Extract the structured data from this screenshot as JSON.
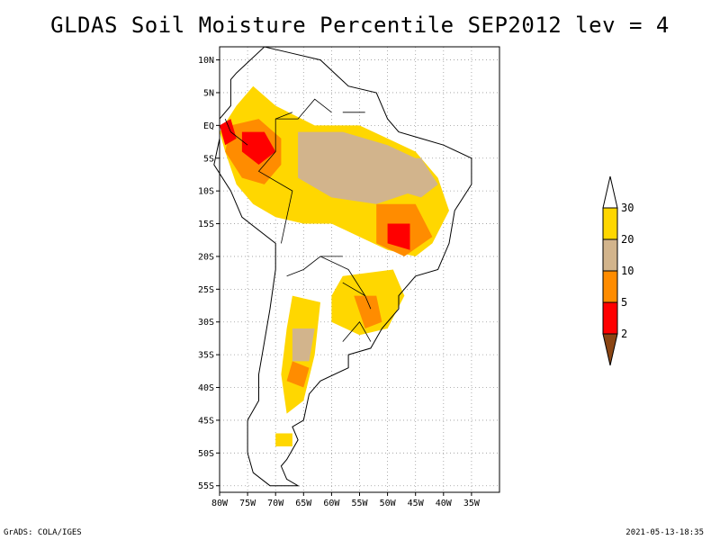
{
  "title": "GLDAS Soil Moisture Percentile SEP2012 lev = 4",
  "footer": {
    "left": "GrADS: COLA/IGES",
    "right": "2021-05-13-18:35"
  },
  "map": {
    "lon_range": [
      -80,
      -30
    ],
    "lat_range": [
      -56,
      12
    ],
    "lon_ticks": [
      {
        "value": -80,
        "label": "80W"
      },
      {
        "value": -75,
        "label": "75W"
      },
      {
        "value": -70,
        "label": "70W"
      },
      {
        "value": -65,
        "label": "65W"
      },
      {
        "value": -60,
        "label": "60W"
      },
      {
        "value": -55,
        "label": "55W"
      },
      {
        "value": -50,
        "label": "50W"
      },
      {
        "value": -45,
        "label": "45W"
      },
      {
        "value": -40,
        "label": "40W"
      },
      {
        "value": -35,
        "label": "35W"
      }
    ],
    "lat_ticks": [
      {
        "value": 10,
        "label": "10N"
      },
      {
        "value": 5,
        "label": "5N"
      },
      {
        "value": 0,
        "label": "EQ"
      },
      {
        "value": -5,
        "label": "5S"
      },
      {
        "value": -10,
        "label": "10S"
      },
      {
        "value": -15,
        "label": "15S"
      },
      {
        "value": -20,
        "label": "20S"
      },
      {
        "value": -25,
        "label": "25S"
      },
      {
        "value": -30,
        "label": "30S"
      },
      {
        "value": -35,
        "label": "35S"
      },
      {
        "value": -40,
        "label": "40S"
      },
      {
        "value": -45,
        "label": "45S"
      },
      {
        "value": -50,
        "label": "50S"
      },
      {
        "value": -55,
        "label": "55S"
      }
    ],
    "grid": true,
    "colorbar": {
      "placement": "right",
      "bins": [
        {
          "range": "<2",
          "color": "#8b4513"
        },
        {
          "range": "2-5",
          "color": "#ff0000"
        },
        {
          "range": "5-10",
          "color": "#ff8c00"
        },
        {
          "range": "10-20",
          "color": "#d2b48c"
        },
        {
          "range": "20-30",
          "color": "#ffd700"
        },
        {
          "range": ">30",
          "color": "#ffffff"
        }
      ],
      "labels": [
        "2",
        "5",
        "10",
        "20",
        "30"
      ]
    },
    "regions": [
      {
        "category": "20-30",
        "color": "#ffd700",
        "coords": [
          [
            -77,
            3
          ],
          [
            -74,
            6
          ],
          [
            -70,
            3
          ],
          [
            -63,
            0
          ],
          [
            -55,
            0
          ],
          [
            -50,
            -2
          ],
          [
            -45,
            -4
          ],
          [
            -41,
            -8
          ],
          [
            -39,
            -13
          ],
          [
            -42,
            -18
          ],
          [
            -45,
            -20
          ],
          [
            -50,
            -19
          ],
          [
            -55,
            -17
          ],
          [
            -60,
            -15
          ],
          [
            -65,
            -15
          ],
          [
            -70,
            -14
          ],
          [
            -74,
            -12
          ],
          [
            -77,
            -9
          ],
          [
            -79,
            -4
          ],
          [
            -80,
            -1
          ]
        ]
      },
      {
        "category": "10-20",
        "color": "#d2b48c",
        "coords": [
          [
            -66,
            -1
          ],
          [
            -58,
            -1
          ],
          [
            -50,
            -3
          ],
          [
            -45,
            -5
          ],
          [
            -45,
            -10
          ],
          [
            -52,
            -12
          ],
          [
            -60,
            -11
          ],
          [
            -66,
            -8
          ]
        ]
      },
      {
        "category": "10-20",
        "color": "#d2b48c",
        "coords": [
          [
            -49,
            -5
          ],
          [
            -44,
            -5
          ],
          [
            -41,
            -9
          ],
          [
            -44,
            -11
          ],
          [
            -48,
            -10
          ]
        ]
      },
      {
        "category": "5-10",
        "color": "#ff8c00",
        "coords": [
          [
            -78,
            0
          ],
          [
            -73,
            1
          ],
          [
            -69,
            -2
          ],
          [
            -69,
            -6
          ],
          [
            -72,
            -9
          ],
          [
            -76,
            -8
          ],
          [
            -79,
            -4
          ]
        ]
      },
      {
        "category": "5-10",
        "color": "#ff8c00",
        "coords": [
          [
            -52,
            -12
          ],
          [
            -45,
            -12
          ],
          [
            -42,
            -17
          ],
          [
            -47,
            -20
          ],
          [
            -52,
            -18
          ]
        ]
      },
      {
        "category": "2-5",
        "color": "#ff0000",
        "coords": [
          [
            -76,
            -1
          ],
          [
            -72,
            -1
          ],
          [
            -70,
            -4
          ],
          [
            -73,
            -6
          ],
          [
            -76,
            -4
          ]
        ]
      },
      {
        "category": "2-5",
        "color": "#ff0000",
        "coords": [
          [
            -80,
            0
          ],
          [
            -78,
            1
          ],
          [
            -77,
            -2
          ],
          [
            -79,
            -3
          ]
        ]
      },
      {
        "category": "2-5",
        "color": "#ff0000",
        "coords": [
          [
            -50,
            -15
          ],
          [
            -46,
            -15
          ],
          [
            -46,
            -19
          ],
          [
            -50,
            -18
          ]
        ]
      },
      {
        "category": "20-30",
        "color": "#ffd700",
        "coords": [
          [
            -58,
            -23
          ],
          [
            -49,
            -22
          ],
          [
            -47,
            -26
          ],
          [
            -50,
            -31
          ],
          [
            -55,
            -32
          ],
          [
            -60,
            -30
          ],
          [
            -60,
            -26
          ]
        ]
      },
      {
        "category": "5-10",
        "color": "#ff8c00",
        "coords": [
          [
            -56,
            -26
          ],
          [
            -52,
            -26
          ],
          [
            -51,
            -30
          ],
          [
            -54,
            -31
          ]
        ]
      },
      {
        "category": "20-30",
        "color": "#ffd700",
        "coords": [
          [
            -67,
            -26
          ],
          [
            -62,
            -27
          ],
          [
            -63,
            -35
          ],
          [
            -65,
            -42
          ],
          [
            -68,
            -44
          ],
          [
            -69,
            -38
          ],
          [
            -68,
            -31
          ]
        ]
      },
      {
        "category": "10-20",
        "color": "#d2b48c",
        "coords": [
          [
            -67,
            -31
          ],
          [
            -63,
            -31
          ],
          [
            -64,
            -36
          ],
          [
            -67,
            -36
          ]
        ]
      },
      {
        "category": "20-30",
        "color": "#ffd700",
        "coords": [
          [
            -70,
            -47
          ],
          [
            -67,
            -47
          ],
          [
            -67,
            -49
          ],
          [
            -70,
            -49
          ]
        ]
      },
      {
        "category": "5-10",
        "color": "#ff8c00",
        "coords": [
          [
            -67,
            -36
          ],
          [
            -64,
            -37
          ],
          [
            -65,
            -40
          ],
          [
            -68,
            -39
          ]
        ]
      }
    ],
    "coastline": [
      [
        -77,
        8
      ],
      [
        -72,
        12
      ],
      [
        -67,
        11
      ],
      [
        -62,
        10
      ],
      [
        -57,
        6
      ],
      [
        -52,
        5
      ],
      [
        -50,
        1
      ],
      [
        -48,
        -1
      ],
      [
        -44,
        -2
      ],
      [
        -40,
        -3
      ],
      [
        -35,
        -5
      ],
      [
        -35,
        -9
      ],
      [
        -38,
        -13
      ],
      [
        -39,
        -18
      ],
      [
        -41,
        -22
      ],
      [
        -45,
        -23
      ],
      [
        -48,
        -26
      ],
      [
        -48,
        -28
      ],
      [
        -51,
        -31
      ],
      [
        -53,
        -34
      ],
      [
        -57,
        -35
      ],
      [
        -57,
        -37
      ],
      [
        -62,
        -39
      ],
      [
        -64,
        -41
      ],
      [
        -65,
        -45
      ],
      [
        -67,
        -46
      ],
      [
        -66,
        -48
      ],
      [
        -68,
        -51
      ],
      [
        -69,
        -52
      ],
      [
        -68,
        -54
      ],
      [
        -66,
        -55
      ],
      [
        -68,
        -55
      ],
      [
        -71,
        -55
      ],
      [
        -74,
        -53
      ],
      [
        -75,
        -50
      ],
      [
        -75,
        -45
      ],
      [
        -73,
        -42
      ],
      [
        -73,
        -38
      ],
      [
        -72,
        -33
      ],
      [
        -71,
        -28
      ],
      [
        -70,
        -22
      ],
      [
        -70,
        -18
      ],
      [
        -76,
        -14
      ],
      [
        -78,
        -10
      ],
      [
        -81,
        -6
      ],
      [
        -80,
        -2
      ],
      [
        -80,
        1
      ],
      [
        -78,
        3
      ],
      [
        -78,
        7
      ]
    ],
    "borders": [
      [
        [
          -69,
          -18
        ],
        [
          -67,
          -10
        ],
        [
          -73,
          -7
        ],
        [
          -70,
          -4
        ],
        [
          -70,
          1
        ],
        [
          -67,
          2
        ]
      ],
      [
        [
          -58,
          -20
        ],
        [
          -62,
          -20
        ],
        [
          -65,
          -22
        ],
        [
          -68,
          -23
        ]
      ],
      [
        [
          -54,
          -26
        ],
        [
          -57,
          -22
        ],
        [
          -62,
          -20
        ]
      ],
      [
        [
          -58,
          -33
        ],
        [
          -55,
          -30
        ],
        [
          -53,
          -33
        ]
      ],
      [
        [
          -58,
          -24
        ],
        [
          -54,
          -26
        ],
        [
          -53,
          -28
        ]
      ],
      [
        [
          -60,
          2
        ],
        [
          -63,
          4
        ],
        [
          -66,
          1
        ],
        [
          -70,
          1
        ]
      ],
      [
        [
          -54,
          2
        ],
        [
          -56,
          2
        ],
        [
          -58,
          2
        ]
      ],
      [
        [
          -75,
          -3
        ],
        [
          -78,
          -1
        ],
        [
          -79,
          1
        ]
      ]
    ]
  }
}
